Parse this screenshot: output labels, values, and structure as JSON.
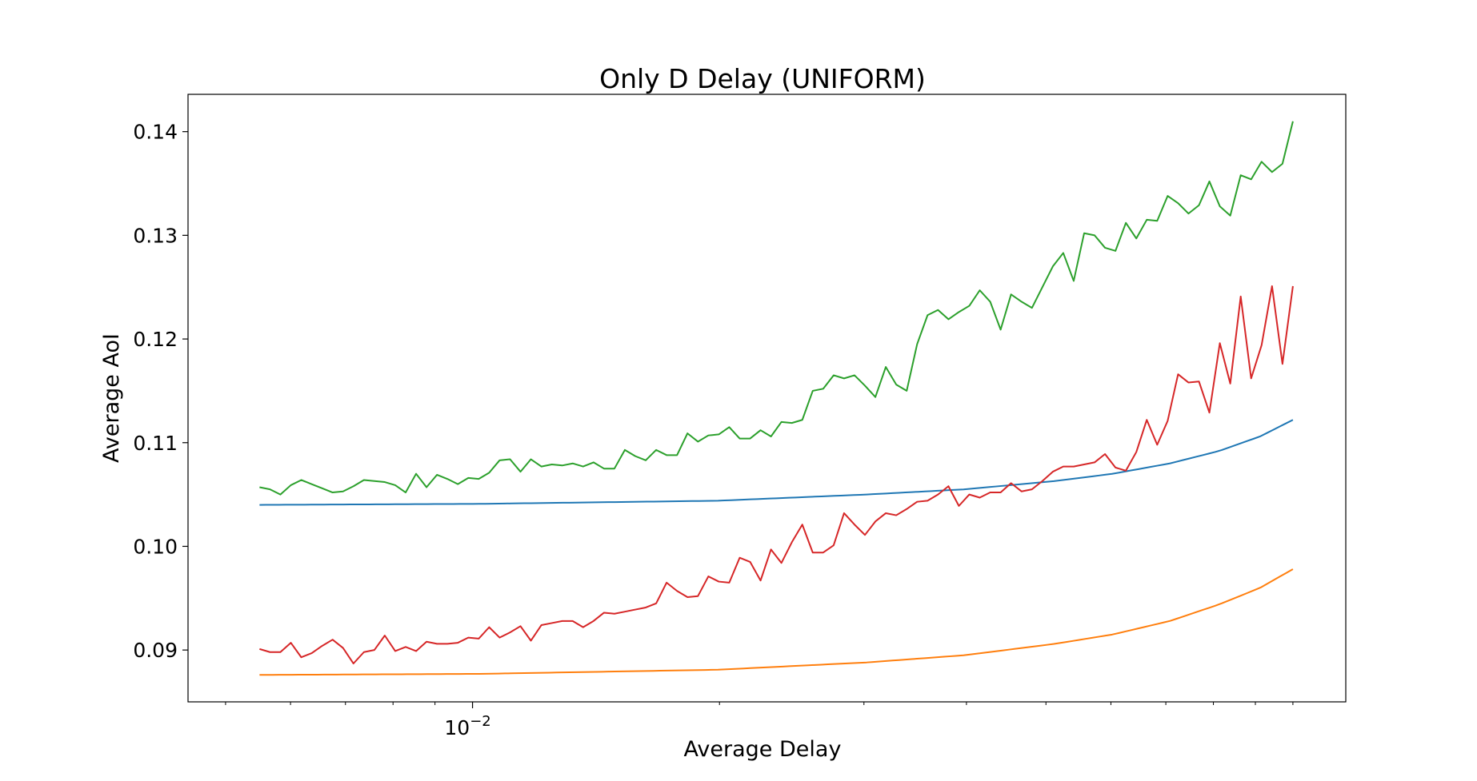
{
  "chart_data": {
    "type": "line",
    "title": "Only D Delay (UNIFORM)",
    "xlabel": "Average Delay",
    "ylabel": "Average AoI",
    "x_scale": "log",
    "xlim": [
      0.0045,
      0.116
    ],
    "ylim": [
      0.085,
      0.1436
    ],
    "x_tick_labels": [
      {
        "value": 0.01,
        "base": "10",
        "exponent": "−2"
      }
    ],
    "y_ticks": [
      0.09,
      0.1,
      0.11,
      0.12,
      0.13,
      0.14
    ],
    "y_tick_labels": [
      "0.09",
      "0.10",
      "0.11",
      "0.12",
      "0.13",
      "0.14"
    ],
    "grid": false,
    "legend": "none",
    "x_start": 0.0055,
    "x_end": 0.1,
    "series": [
      {
        "color": "#1f77b4",
        "x_samples": [
          0.0055,
          0.0102,
          0.0199,
          0.0302,
          0.0398,
          0.0513,
          0.0603,
          0.0708,
          0.0813,
          0.0912,
          0.1
        ],
        "values": [
          0.104,
          0.1041,
          0.1044,
          0.105,
          0.1055,
          0.1063,
          0.107,
          0.108,
          0.1092,
          0.1106,
          0.1122
        ]
      },
      {
        "color": "#ff7f0e",
        "x_samples": [
          0.0055,
          0.0102,
          0.0199,
          0.0302,
          0.0398,
          0.0513,
          0.0603,
          0.0708,
          0.0813,
          0.0912,
          0.1
        ],
        "values": [
          0.0876,
          0.0877,
          0.0881,
          0.0888,
          0.0895,
          0.0906,
          0.0915,
          0.0928,
          0.0944,
          0.096,
          0.0978
        ]
      },
      {
        "color": "#2ca02c",
        "values": [
          0.1057,
          0.1055,
          0.105,
          0.1059,
          0.1064,
          0.106,
          0.1056,
          0.1052,
          0.1053,
          0.1058,
          0.1064,
          0.1063,
          0.1062,
          0.1059,
          0.1052,
          0.107,
          0.1057,
          0.1069,
          0.1065,
          0.106,
          0.1066,
          0.1065,
          0.1071,
          0.1083,
          0.1084,
          0.1072,
          0.1084,
          0.1077,
          0.1079,
          0.1078,
          0.108,
          0.1077,
          0.1081,
          0.1075,
          0.1075,
          0.1093,
          0.1087,
          0.1083,
          0.1093,
          0.1088,
          0.1088,
          0.1109,
          0.1101,
          0.1107,
          0.1108,
          0.1115,
          0.1104,
          0.1104,
          0.1112,
          0.1106,
          0.112,
          0.1119,
          0.1122,
          0.115,
          0.1152,
          0.1165,
          0.1162,
          0.1165,
          0.1155,
          0.1144,
          0.1173,
          0.1156,
          0.115,
          0.1195,
          0.1223,
          0.1228,
          0.1219,
          0.1226,
          0.1232,
          0.1247,
          0.1236,
          0.1209,
          0.1243,
          0.1236,
          0.123,
          0.125,
          0.127,
          0.1283,
          0.1256,
          0.1302,
          0.13,
          0.1288,
          0.1285,
          0.1312,
          0.1297,
          0.1315,
          0.1314,
          0.1338,
          0.1331,
          0.1321,
          0.1329,
          0.1352,
          0.1328,
          0.1319,
          0.1358,
          0.1354,
          0.1371,
          0.1361,
          0.1369,
          0.141
        ]
      },
      {
        "color": "#d62728",
        "values": [
          0.0901,
          0.0898,
          0.0898,
          0.0907,
          0.0893,
          0.0897,
          0.0904,
          0.091,
          0.0902,
          0.0887,
          0.0898,
          0.09,
          0.0914,
          0.0899,
          0.0903,
          0.0899,
          0.0908,
          0.0906,
          0.0906,
          0.0907,
          0.0912,
          0.0911,
          0.0922,
          0.0912,
          0.0917,
          0.0923,
          0.0909,
          0.0924,
          0.0926,
          0.0928,
          0.0928,
          0.0922,
          0.0928,
          0.0936,
          0.0935,
          0.0937,
          0.0939,
          0.0941,
          0.0945,
          0.0965,
          0.0957,
          0.0951,
          0.0952,
          0.0971,
          0.0966,
          0.0965,
          0.0989,
          0.0985,
          0.0967,
          0.0997,
          0.0984,
          0.1004,
          0.1021,
          0.0994,
          0.0994,
          0.1001,
          0.1032,
          0.1021,
          0.1011,
          0.1024,
          0.1032,
          0.103,
          0.1036,
          0.1043,
          0.1044,
          0.105,
          0.1058,
          0.1039,
          0.105,
          0.1047,
          0.1052,
          0.1052,
          0.1061,
          0.1053,
          0.1055,
          0.1063,
          0.1072,
          0.1077,
          0.1077,
          0.1079,
          0.1081,
          0.1089,
          0.1076,
          0.1073,
          0.1091,
          0.1122,
          0.1098,
          0.1121,
          0.1166,
          0.1158,
          0.1159,
          0.1129,
          0.1196,
          0.1157,
          0.1241,
          0.1162,
          0.1194,
          0.1251,
          0.1176,
          0.1251
        ]
      }
    ]
  }
}
